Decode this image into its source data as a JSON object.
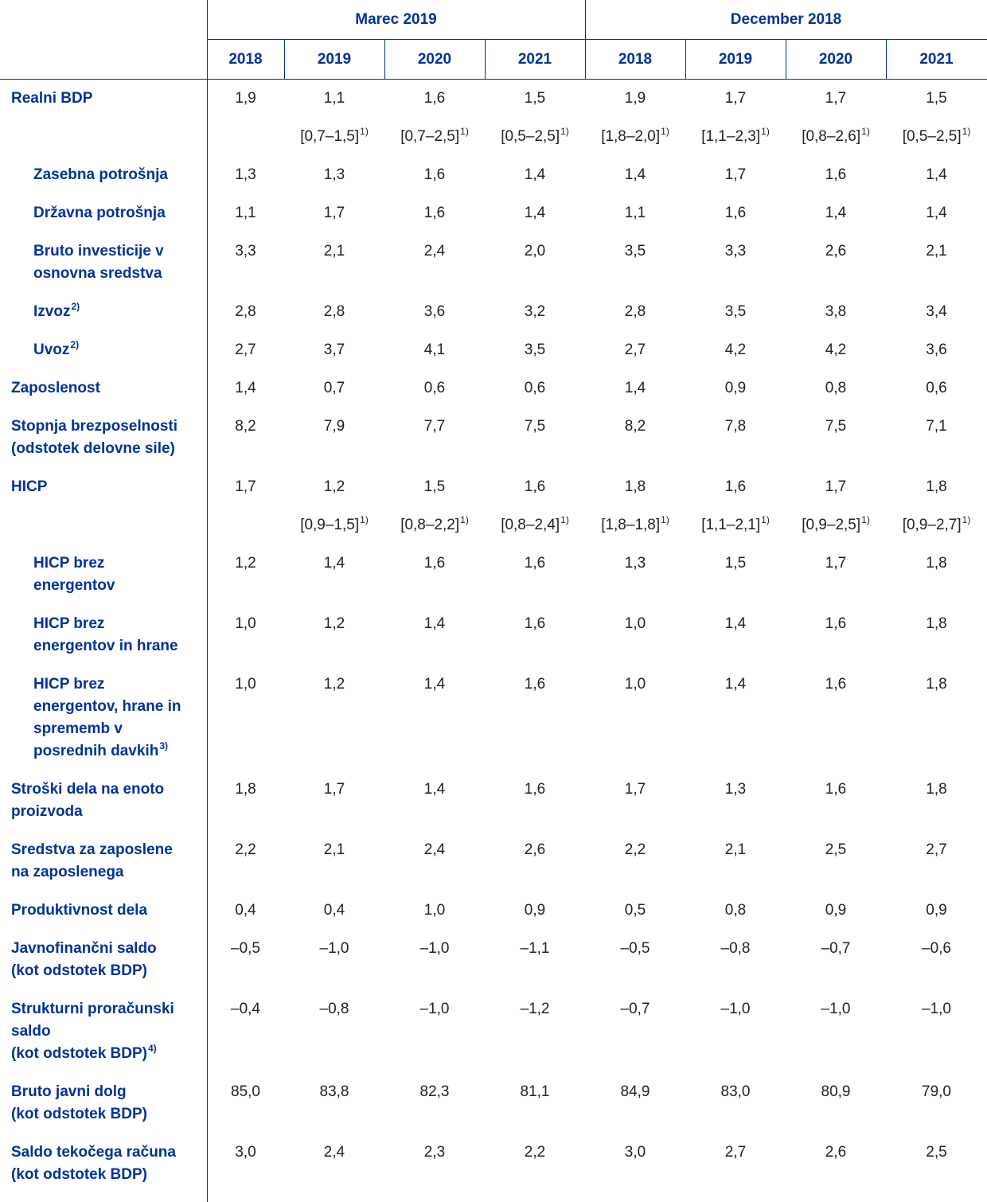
{
  "table": {
    "groups": [
      "Marec 2019",
      "December 2018"
    ],
    "years": [
      "2018",
      "2019",
      "2020",
      "2021",
      "2018",
      "2019",
      "2020",
      "2021"
    ],
    "range_note": "1)",
    "rows": [
      {
        "lines": [
          "Realni BDP"
        ],
        "indent": false,
        "values": [
          "1,9",
          "1,1",
          "1,6",
          "1,5",
          "1,9",
          "1,7",
          "1,7",
          "1,5"
        ],
        "ranges": [
          null,
          "[0,7–1,5]",
          "[0,7–2,5]",
          "[0,5–2,5]",
          "[1,8–2,0]",
          "[1,1–2,3]",
          "[0,8–2,6]",
          "[0,5–2,5]"
        ]
      },
      {
        "lines": [
          "Zasebna potrošnja"
        ],
        "indent": true,
        "values": [
          "1,3",
          "1,3",
          "1,6",
          "1,4",
          "1,4",
          "1,7",
          "1,6",
          "1,4"
        ]
      },
      {
        "lines": [
          "Državna potrošnja"
        ],
        "indent": true,
        "values": [
          "1,1",
          "1,7",
          "1,6",
          "1,4",
          "1,1",
          "1,6",
          "1,4",
          "1,4"
        ]
      },
      {
        "lines": [
          "Bruto investicije v",
          "osnovna sredstva"
        ],
        "indent": true,
        "values": [
          "3,3",
          "2,1",
          "2,4",
          "2,0",
          "3,5",
          "3,3",
          "2,6",
          "2,1"
        ]
      },
      {
        "lines": [
          "Izvoz"
        ],
        "note": "2)",
        "indent": true,
        "values": [
          "2,8",
          "2,8",
          "3,6",
          "3,2",
          "2,8",
          "3,5",
          "3,8",
          "3,4"
        ]
      },
      {
        "lines": [
          "Uvoz"
        ],
        "note": "2)",
        "indent": true,
        "values": [
          "2,7",
          "3,7",
          "4,1",
          "3,5",
          "2,7",
          "4,2",
          "4,2",
          "3,6"
        ]
      },
      {
        "lines": [
          "Zaposlenost"
        ],
        "indent": false,
        "values": [
          "1,4",
          "0,7",
          "0,6",
          "0,6",
          "1,4",
          "0,9",
          "0,8",
          "0,6"
        ]
      },
      {
        "lines": [
          "Stopnja brezposelnosti",
          "(odstotek delovne sile)"
        ],
        "indent": false,
        "values": [
          "8,2",
          "7,9",
          "7,7",
          "7,5",
          "8,2",
          "7,8",
          "7,5",
          "7,1"
        ]
      },
      {
        "lines": [
          "HICP"
        ],
        "indent": false,
        "values": [
          "1,7",
          "1,2",
          "1,5",
          "1,6",
          "1,8",
          "1,6",
          "1,7",
          "1,8"
        ],
        "ranges": [
          null,
          "[0,9–1,5]",
          "[0,8–2,2]",
          "[0,8–2,4]",
          "[1,8–1,8]",
          "[1,1–2,1]",
          "[0,9–2,5]",
          "[0,9–2,7]"
        ]
      },
      {
        "lines": [
          "HICP brez",
          "energentov"
        ],
        "indent": true,
        "values": [
          "1,2",
          "1,4",
          "1,6",
          "1,6",
          "1,3",
          "1,5",
          "1,7",
          "1,8"
        ]
      },
      {
        "lines": [
          "HICP brez",
          "energentov in hrane"
        ],
        "indent": true,
        "values": [
          "1,0",
          "1,2",
          "1,4",
          "1,6",
          "1,0",
          "1,4",
          "1,6",
          "1,8"
        ]
      },
      {
        "lines": [
          "HICP brez",
          "energentov, hrane in",
          "sprememb v",
          "posrednih davkih"
        ],
        "note": "3)",
        "indent": true,
        "values": [
          "1,0",
          "1,2",
          "1,4",
          "1,6",
          "1,0",
          "1,4",
          "1,6",
          "1,8"
        ]
      },
      {
        "lines": [
          "Stroški dela na enoto",
          "proizvoda"
        ],
        "indent": false,
        "values": [
          "1,8",
          "1,7",
          "1,4",
          "1,6",
          "1,7",
          "1,3",
          "1,6",
          "1,8"
        ]
      },
      {
        "lines": [
          "Sredstva za zaposlene",
          "na zaposlenega"
        ],
        "indent": false,
        "values": [
          "2,2",
          "2,1",
          "2,4",
          "2,6",
          "2,2",
          "2,1",
          "2,5",
          "2,7"
        ]
      },
      {
        "lines": [
          "Produktivnost dela"
        ],
        "indent": false,
        "values": [
          "0,4",
          "0,4",
          "1,0",
          "0,9",
          "0,5",
          "0,8",
          "0,9",
          "0,9"
        ]
      },
      {
        "lines": [
          "Javnofinančni saldo",
          "(kot odstotek BDP)"
        ],
        "indent": false,
        "values": [
          "–0,5",
          "–1,0",
          "–1,0",
          "–1,1",
          "–0,5",
          "–0,8",
          "–0,7",
          "–0,6"
        ]
      },
      {
        "lines": [
          "Strukturni proračunski",
          "saldo",
          "(kot odstotek BDP)"
        ],
        "note": "4)",
        "indent": false,
        "values": [
          "–0,4",
          "–0,8",
          "–1,0",
          "–1,2",
          "–0,7",
          "–1,0",
          "–1,0",
          "–1,0"
        ]
      },
      {
        "lines": [
          "Bruto javni dolg",
          "(kot odstotek BDP)"
        ],
        "indent": false,
        "values": [
          "85,0",
          "83,8",
          "82,3",
          "81,1",
          "84,9",
          "83,0",
          "80,9",
          "79,0"
        ]
      },
      {
        "lines": [
          "Saldo tekočega računa",
          "(kot odstotek BDP)"
        ],
        "indent": false,
        "values": [
          "3,0",
          "2,4",
          "2,3",
          "2,2",
          "3,0",
          "2,7",
          "2,6",
          "2,5"
        ]
      }
    ]
  }
}
